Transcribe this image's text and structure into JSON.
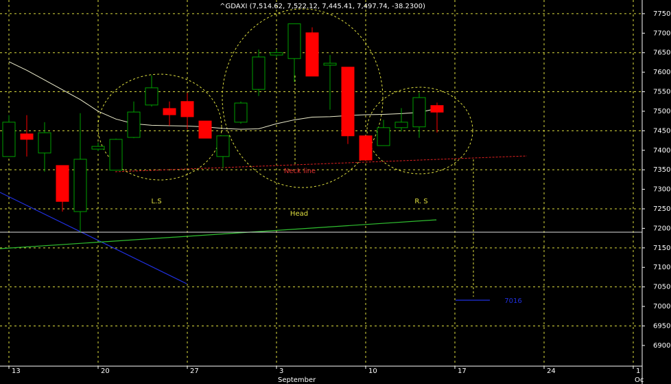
{
  "chart_data": {
    "type": "candlestick",
    "title": "^GDAXI (7,514.62, 7,522.12, 7,445.41, 7,497.74, -38.2300)",
    "categories": [
      "13",
      null,
      null,
      null,
      null,
      "20",
      null,
      null,
      null,
      null,
      "27",
      null,
      null,
      null,
      null,
      "3",
      null,
      null,
      null,
      null,
      "10",
      null,
      null,
      null,
      null,
      "17",
      null,
      null,
      null,
      null,
      "24",
      null,
      null,
      null,
      null,
      "1"
    ],
    "months": [
      null,
      null,
      null,
      null,
      null,
      null,
      null,
      null,
      null,
      null,
      null,
      null,
      null,
      null,
      null,
      "September",
      null,
      null,
      null,
      null,
      null,
      null,
      null,
      null,
      null,
      null,
      null,
      null,
      null,
      null,
      null,
      null,
      null,
      null,
      null,
      "Oc"
    ],
    "open": [
      7384,
      7442,
      7393,
      7361,
      7243,
      7403,
      7349,
      7433,
      7516,
      7507,
      7525,
      7475,
      7384,
      7472,
      7556,
      7644,
      7635,
      7701,
      7618,
      7613,
      7437,
      7412,
      7458,
      7460,
      7514.62,
      null,
      null,
      null,
      null,
      null,
      null,
      null,
      null,
      null,
      null,
      null
    ],
    "high": [
      7490,
      7490,
      7472,
      7361,
      7495,
      7420,
      7430,
      7525,
      7592,
      7525,
      7547,
      7475,
      7437,
      7525,
      7658,
      7658,
      7724,
      7715,
      7644,
      7613,
      7437,
      7478,
      7508,
      7547,
      7522.12,
      null,
      null,
      null,
      null,
      null,
      null,
      null,
      null,
      null,
      null,
      null
    ],
    "low": [
      7384,
      7384,
      7345,
      7243,
      7190,
      7398,
      7349,
      7431,
      7512,
      7463,
      7454,
      7431,
      7354,
      7468,
      7539,
      7638,
      7575,
      7590,
      7504,
      7416,
      7375,
      7412,
      7448,
      7432,
      7445.41,
      null,
      null,
      null,
      null,
      null,
      null,
      null,
      null,
      null,
      null,
      null
    ],
    "close": [
      7472,
      7428,
      7445,
      7269,
      7377,
      7410,
      7428,
      7498,
      7560,
      7491,
      7486,
      7431,
      7437,
      7521,
      7639,
      7650,
      7724,
      7590,
      7623,
      7437,
      7375,
      7458,
      7472,
      7535,
      7497.74,
      null,
      null,
      null,
      null,
      null,
      null,
      null,
      null,
      null,
      null,
      null
    ],
    "up_color": "#00a000",
    "down_color": "#ff0000",
    "ma": {
      "color": "#f0f0d0",
      "values": [
        7627,
        7605,
        7580,
        7555,
        7530,
        7500,
        7480,
        7468,
        7464,
        7463,
        7462,
        7460,
        7456,
        7454,
        7455,
        7468,
        7478,
        7485,
        7486,
        7489,
        7491,
        7492,
        7494,
        7497,
        7507,
        null,
        null,
        null,
        null,
        null,
        null,
        null,
        null,
        null,
        null,
        null
      ]
    },
    "ylim": [
      6847,
      7785
    ],
    "yticks": [
      6900,
      6950,
      7000,
      7050,
      7100,
      7150,
      7200,
      7250,
      7300,
      7350,
      7400,
      7450,
      7500,
      7550,
      7600,
      7650,
      7700,
      7750
    ],
    "grid": true,
    "annotations": {
      "left_shoulder": "L.S",
      "head": "Head",
      "right_shoulder": "R. S",
      "neckline": "Neck line",
      "target": "7016"
    }
  }
}
